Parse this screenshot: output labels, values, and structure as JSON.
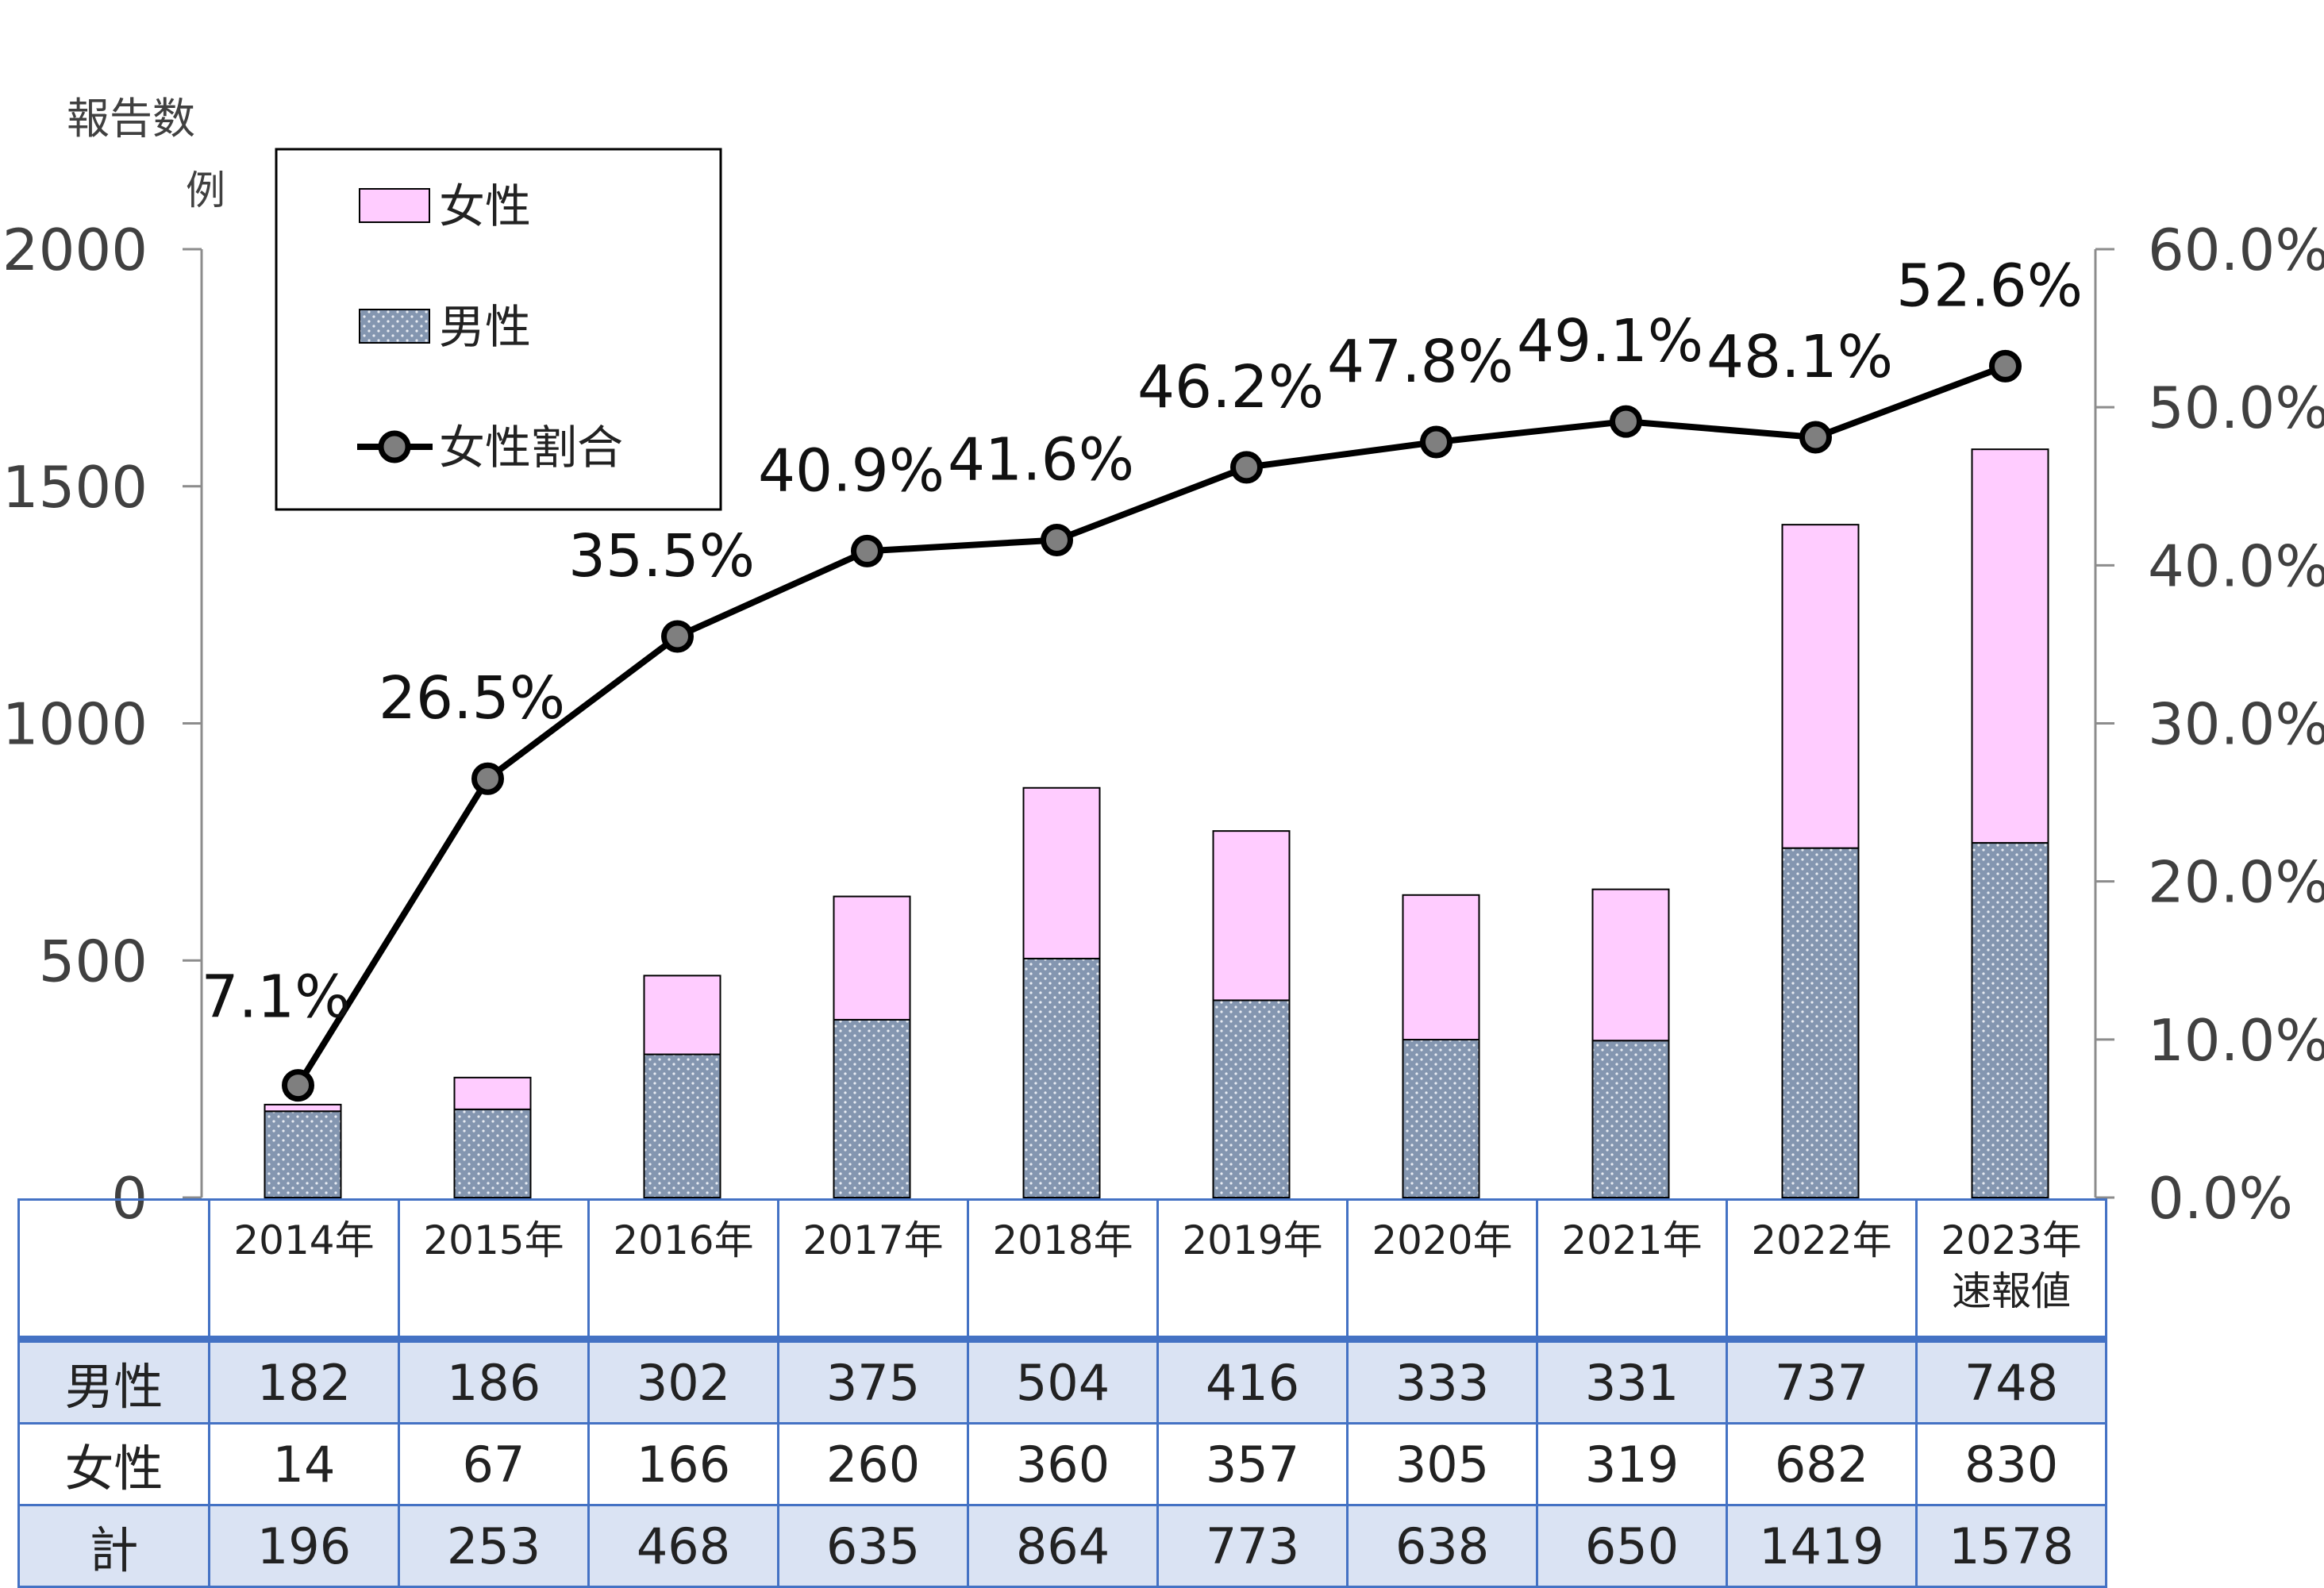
{
  "chart_data": {
    "type": "bar",
    "stacked": true,
    "y_axis_title_line1": "報告数",
    "y_axis_title_line2": "例",
    "categories": [
      "2014年",
      "2015年",
      "2016年",
      "2017年",
      "2018年",
      "2019年",
      "2020年",
      "2021年",
      "2022年",
      "2023年"
    ],
    "category_sub": [
      "",
      "",
      "",
      "",
      "",
      "",
      "",
      "",
      "",
      "速報値"
    ],
    "series": [
      {
        "name": "男性",
        "values": [
          182,
          186,
          302,
          375,
          504,
          416,
          333,
          331,
          737,
          748
        ],
        "color": "#8496b0",
        "pattern": "dots"
      },
      {
        "name": "女性",
        "values": [
          14,
          67,
          166,
          260,
          360,
          357,
          305,
          319,
          682,
          830
        ],
        "color": "#ffccff"
      }
    ],
    "line_series": {
      "name": "女性割合",
      "values": [
        7.1,
        26.5,
        35.5,
        40.9,
        41.6,
        46.2,
        47.8,
        49.1,
        48.1,
        52.6
      ],
      "labels": [
        "7.1%",
        "26.5%",
        "35.5%",
        "40.9%",
        "41.6%",
        "46.2%",
        "47.8%",
        "49.1%",
        "48.1%",
        "52.6%"
      ],
      "color": "#000000",
      "marker_color": "#7f7f7f"
    },
    "totals": [
      196,
      253,
      468,
      635,
      864,
      773,
      638,
      650,
      1419,
      1578
    ],
    "ylim": [
      0,
      2000
    ],
    "y_ticks": [
      "0",
      "500",
      "1000",
      "1500",
      "2000"
    ],
    "y2lim": [
      0,
      60
    ],
    "y2_ticks": [
      "0.0%",
      "10.0%",
      "20.0%",
      "30.0%",
      "40.0%",
      "50.0%",
      "60.0%"
    ],
    "legend_position": "top-left"
  },
  "table": {
    "row_labels": [
      "男性",
      "女性",
      "計"
    ]
  }
}
